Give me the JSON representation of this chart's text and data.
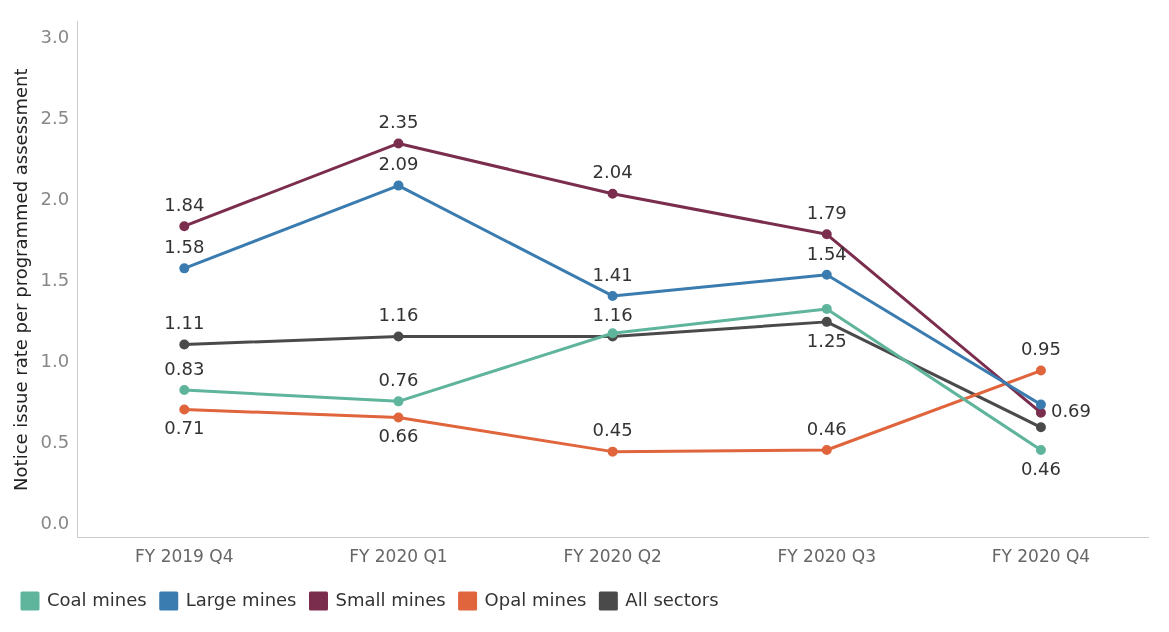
{
  "chart_data": {
    "type": "line",
    "ylabel": "Notice issue rate per programmed assessment",
    "categories": [
      "FY 2019 Q4",
      "FY 2020 Q1",
      "FY 2020 Q2",
      "FY 2020 Q3",
      "FY 2020 Q4"
    ],
    "series": [
      {
        "name": "Coal mines",
        "color": "#5fb49c",
        "values": [
          0.83,
          0.76,
          1.18,
          1.33,
          0.46
        ],
        "value_labels": [
          "0.83",
          "0.76",
          null,
          null,
          "0.46"
        ]
      },
      {
        "name": "Large mines",
        "color": "#3a7cb0",
        "values": [
          1.58,
          2.09,
          1.41,
          1.54,
          0.74
        ],
        "value_labels": [
          "1.58",
          "2.09",
          "1.41",
          "1.54",
          null
        ]
      },
      {
        "name": "Small mines",
        "color": "#7b2d4e",
        "values": [
          1.84,
          2.35,
          2.04,
          1.79,
          0.69
        ],
        "value_labels": [
          "1.84",
          "2.35",
          "2.04",
          "1.79",
          "0.69"
        ]
      },
      {
        "name": "Opal mines",
        "color": "#e0643c",
        "values": [
          0.71,
          0.66,
          0.45,
          0.46,
          0.95
        ],
        "value_labels": [
          "0.71",
          "0.66",
          "0.45",
          "0.46",
          "0.95"
        ]
      },
      {
        "name": "All sectors",
        "color": "#4a4a4a",
        "values": [
          1.11,
          1.16,
          1.16,
          1.25,
          0.6
        ],
        "value_labels": [
          "1.11",
          "1.16",
          "1.16",
          "1.25",
          null
        ]
      }
    ],
    "ylim": [
      -0.08,
      3.1
    ],
    "yticks": [
      {
        "value": 0,
        "label": "0.0"
      },
      {
        "value": 0.5,
        "label": "0.5"
      },
      {
        "value": 1,
        "label": "1.0"
      },
      {
        "value": 1.5,
        "label": "1.5"
      },
      {
        "value": 2,
        "label": "2.0"
      },
      {
        "value": 2.5,
        "label": "2.5"
      },
      {
        "value": 3,
        "label": "3.0"
      }
    ],
    "grid": false,
    "legend": "bottom",
    "marker": "circle",
    "line_style": "solid"
  }
}
